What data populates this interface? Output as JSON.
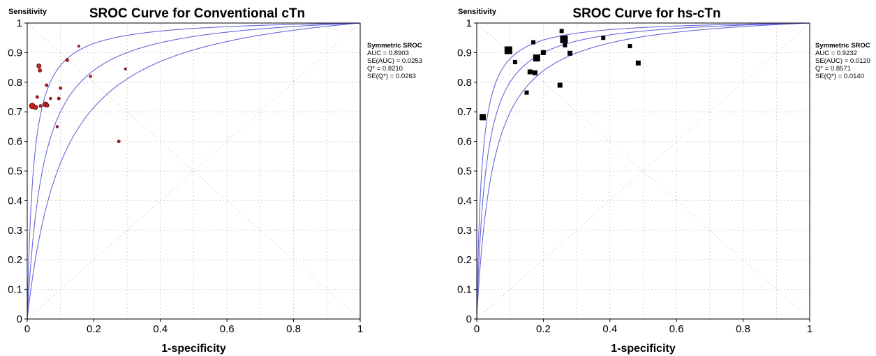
{
  "chart_data": [
    {
      "type": "scatter",
      "title": "SROC Curve for Conventional cTn",
      "ylabel": "Sensitivity",
      "xlabel": "1-specificity",
      "xlim": [
        0,
        1
      ],
      "ylim": [
        0,
        1
      ],
      "x_ticks": [
        "0",
        "0.2",
        "0.4",
        "0.6",
        "0.8",
        "1"
      ],
      "y_ticks": [
        "0",
        "0.1",
        "0.2",
        "0.3",
        "0.4",
        "0.5",
        "0.6",
        "0.7",
        "0.8",
        "0.9",
        "1"
      ],
      "grid": true,
      "marker": "circle",
      "marker_color": "#cc2222",
      "curve_color": "#6666dd",
      "curve_q_values": [
        0.821,
        0.76,
        0.88
      ],
      "info": {
        "heading": "Symmetric SROC",
        "lines": [
          "AUC = 0.8903",
          "SE(AUC) = 0.0253",
          "Q* = 0.8210",
          "SE(Q*) = 0.0263"
        ]
      },
      "points": [
        {
          "x": 0.015,
          "y": 0.72,
          "size": 8
        },
        {
          "x": 0.025,
          "y": 0.715,
          "size": 6
        },
        {
          "x": 0.03,
          "y": 0.75,
          "size": 4
        },
        {
          "x": 0.035,
          "y": 0.855,
          "size": 6
        },
        {
          "x": 0.038,
          "y": 0.84,
          "size": 5
        },
        {
          "x": 0.04,
          "y": 0.72,
          "size": 4
        },
        {
          "x": 0.055,
          "y": 0.725,
          "size": 7
        },
        {
          "x": 0.058,
          "y": 0.79,
          "size": 4
        },
        {
          "x": 0.06,
          "y": 0.722,
          "size": 5
        },
        {
          "x": 0.07,
          "y": 0.745,
          "size": 3.5
        },
        {
          "x": 0.09,
          "y": 0.65,
          "size": 3.5
        },
        {
          "x": 0.095,
          "y": 0.745,
          "size": 4
        },
        {
          "x": 0.1,
          "y": 0.78,
          "size": 4
        },
        {
          "x": 0.12,
          "y": 0.875,
          "size": 4.5
        },
        {
          "x": 0.155,
          "y": 0.922,
          "size": 3
        },
        {
          "x": 0.19,
          "y": 0.82,
          "size": 3.5
        },
        {
          "x": 0.275,
          "y": 0.6,
          "size": 4
        },
        {
          "x": 0.295,
          "y": 0.845,
          "size": 3
        }
      ]
    },
    {
      "type": "scatter",
      "title": "SROC Curve for hs-cTn",
      "ylabel": "Sensitivity",
      "xlabel": "1-specificity",
      "xlim": [
        0,
        1
      ],
      "ylim": [
        0,
        1
      ],
      "x_ticks": [
        "0",
        "0.2",
        "0.4",
        "0.6",
        "0.8",
        "1"
      ],
      "y_ticks": [
        "0",
        "0.1",
        "0.2",
        "0.3",
        "0.4",
        "0.5",
        "0.6",
        "0.7",
        "0.8",
        "0.9",
        "1"
      ],
      "grid": true,
      "marker": "square",
      "marker_color": "#000000",
      "curve_color": "#6666dd",
      "curve_q_values": [
        0.8571,
        0.82,
        0.89
      ],
      "info": {
        "heading": "Symmetric SROC",
        "lines": [
          "AUC = 0.9232",
          "SE(AUC) = 0.0120",
          "Q* = 0.8571",
          "SE(Q*) = 0.0140"
        ]
      },
      "points": [
        {
          "x": 0.018,
          "y": 0.682,
          "size": 9
        },
        {
          "x": 0.095,
          "y": 0.908,
          "size": 11
        },
        {
          "x": 0.115,
          "y": 0.868,
          "size": 6
        },
        {
          "x": 0.15,
          "y": 0.765,
          "size": 6
        },
        {
          "x": 0.16,
          "y": 0.835,
          "size": 7
        },
        {
          "x": 0.17,
          "y": 0.935,
          "size": 6
        },
        {
          "x": 0.175,
          "y": 0.832,
          "size": 7
        },
        {
          "x": 0.18,
          "y": 0.882,
          "size": 10
        },
        {
          "x": 0.2,
          "y": 0.9,
          "size": 7
        },
        {
          "x": 0.25,
          "y": 0.79,
          "size": 7
        },
        {
          "x": 0.255,
          "y": 0.973,
          "size": 6
        },
        {
          "x": 0.262,
          "y": 0.945,
          "size": 11
        },
        {
          "x": 0.265,
          "y": 0.925,
          "size": 6
        },
        {
          "x": 0.28,
          "y": 0.898,
          "size": 7
        },
        {
          "x": 0.38,
          "y": 0.95,
          "size": 6
        },
        {
          "x": 0.46,
          "y": 0.922,
          "size": 6
        },
        {
          "x": 0.485,
          "y": 0.865,
          "size": 7
        }
      ]
    }
  ]
}
